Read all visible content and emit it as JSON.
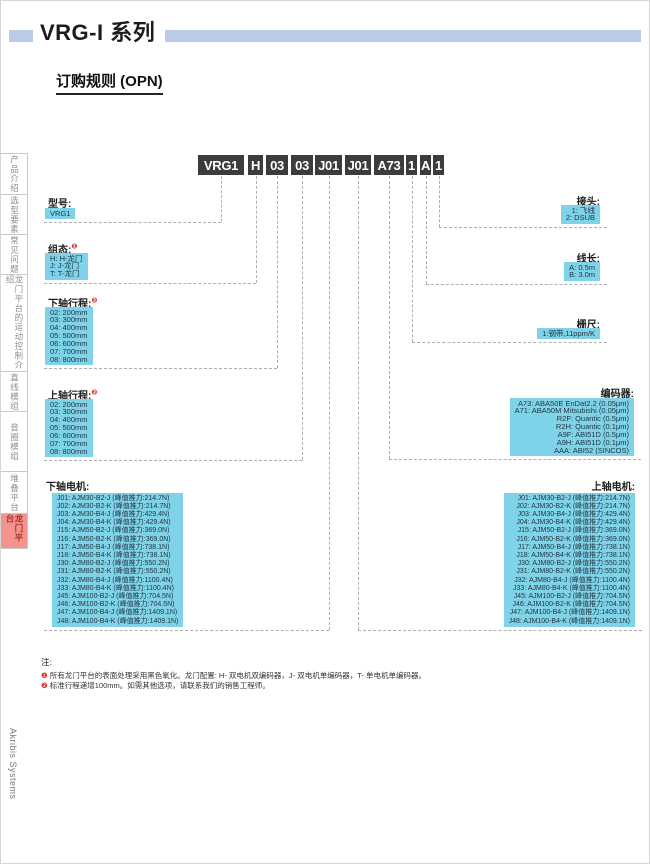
{
  "page": {
    "series_title": "VRG-I 系列",
    "section_title": "订购规则 (OPN)",
    "brand_vertical": "Akribis Systems"
  },
  "sidebar": {
    "tabs": [
      {
        "label": "产品介绍",
        "active": false
      },
      {
        "label": "选型要素",
        "active": false
      },
      {
        "label": "常见问题",
        "active": false
      },
      {
        "label": "龙门平台的运动控制介绍",
        "active": false
      },
      {
        "label": "直线模组",
        "active": false
      },
      {
        "label": "音圈模组",
        "active": false
      },
      {
        "label": "堆叠平台",
        "active": false
      },
      {
        "label": "龙门平台",
        "active": true
      }
    ]
  },
  "part_number": {
    "segments": [
      "VRG1",
      "H",
      "03",
      "03",
      "J01",
      "J01",
      "A73",
      "1",
      "A",
      "1"
    ]
  },
  "groups_left": [
    {
      "id": "model",
      "label": "型号:",
      "note_ref": "",
      "options": [
        "VRG1"
      ]
    },
    {
      "id": "configuration",
      "label": "组态:",
      "note_ref": "❶",
      "options": [
        "H: H-龙门",
        "J: J-龙门",
        "T: T-龙门"
      ]
    },
    {
      "id": "lower-axis-stroke",
      "label": "下轴行程:",
      "note_ref": "❷",
      "options": [
        "02: 200mm",
        "03: 300mm",
        "04: 400mm",
        "05: 500mm",
        "06: 600mm",
        "07: 700mm",
        "08: 800mm"
      ]
    },
    {
      "id": "upper-axis-stroke",
      "label": "上轴行程:",
      "note_ref": "❷",
      "options": [
        "02: 200mm",
        "03: 300mm",
        "04: 400mm",
        "05: 500mm",
        "06: 600mm",
        "07: 700mm",
        "08: 800mm"
      ]
    },
    {
      "id": "lower-axis-motor",
      "label": "下轴电机:",
      "note_ref": "",
      "options": [
        "J01: AJM30-B2-J (峰值推力:214.7N)",
        "J02: AJM30-B2-K (峰值推力:214.7N)",
        "J03: AJM30-B4-J (峰值推力:429.4N)",
        "J04: AJM30-B4-K (峰值推力:429.4N)",
        "J15: AJM50-B2-J (峰值推力:369.0N)",
        "J16: AJM50-B2-K (峰值推力:369.0N)",
        "J17: AJM50-B4-J (峰值推力:738.1N)",
        "J18: AJM50-B4-K (峰值推力:738.1N)",
        "J30: AJM80-B2-J (峰值推力:550.2N)",
        "J31: AJM80-B2-K (峰值推力:550.2N)",
        "J32: AJM80-B4-J (峰值推力:1100.4N)",
        "J33: AJM80-B4-K (峰值推力:1100.4N)",
        "J45: AJM100-B2-J (峰值推力:704.5N)",
        "J46: AJM100-B2-K (峰值推力:704.5N)",
        "J47: AJM100-B4-J (峰值推力:1409.1N)",
        "J48: AJM100-B4-K (峰值推力:1409.1N)"
      ]
    }
  ],
  "groups_right": [
    {
      "id": "connector",
      "label": "接头:",
      "note_ref": "",
      "options": [
        "1: 飞线",
        "2: DSUB"
      ]
    },
    {
      "id": "cable-length",
      "label": "线长:",
      "note_ref": "",
      "options": [
        "A: 0.5m",
        "B: 3.0m"
      ]
    },
    {
      "id": "scale",
      "label": "栅尺:",
      "note_ref": "",
      "options": [
        "1:钢带,11ppm/K"
      ]
    },
    {
      "id": "encoder",
      "label": "编码器:",
      "note_ref": "",
      "options": [
        "A73: ABA50E EnDat2.2 (0.05μm)",
        "A71: ABA50M Mitsubishi (0.05μm)",
        "R2F: Quantic (0.5μm)",
        "R2H: Quantic (0.1μm)",
        "A9F: ABI51D (0.5μm)",
        "A9H: ABI51D (0.1μm)",
        "AAA: ABI52 (SINCOS)"
      ]
    },
    {
      "id": "upper-axis-motor",
      "label": "上轴电机:",
      "note_ref": "",
      "options": [
        "J01: AJM30-B2-J (峰值推力:214.7N)",
        "J02: AJM30-B2-K (峰值推力:214.7N)",
        "J03: AJM30-B4-J (峰值推力:429.4N)",
        "J04: AJM30-B4-K (峰值推力:429.4N)",
        "J15: AJM50-B2-J (峰值推力:369.0N)",
        "J16: AJM50-B2-K (峰值推力:369.0N)",
        "J17: AJM50-B4-J (峰值推力:738.1N)",
        "J18: AJM50-B4-K (峰值推力:738.1N)",
        "J30: AJM80-B2-J (峰值推力:550.2N)",
        "J31: AJM80-B2-K (峰值推力:550.2N)",
        "J32: AJM80-B4-J (峰值推力:1100.4N)",
        "J33: AJM80-B4-K (峰值推力:1100.4N)",
        "J45: AJM100-B2-J (峰值推力:704.5N)",
        "J46: AJM100-B2-K (峰值推力:704.5N)",
        "J47: AJM100-B4-J (峰值推力:1409.1N)",
        "J48: AJM100-B4-K (峰值推力:1409.1N)"
      ]
    }
  ],
  "notes": {
    "title": "注:",
    "items": [
      {
        "marker": "❶",
        "text": "所有龙门平台的表面处理采用黑色氧化。龙门配置: H- 双电机双编码器，J- 双电机单编码器，T- 单电机单编码器。"
      },
      {
        "marker": "❷",
        "text": "标准行程递增100mm。如需其他选项，请联系我们的销售工程师。"
      }
    ]
  },
  "colors": {
    "option_box": "#7ed3e9",
    "part_number_block": "#3c3c3c",
    "title_bar": "#b9cbe6",
    "note_marker": "#d9342b",
    "active_tab_bg": "#f4928c",
    "active_tab_text": "#a3362c"
  }
}
